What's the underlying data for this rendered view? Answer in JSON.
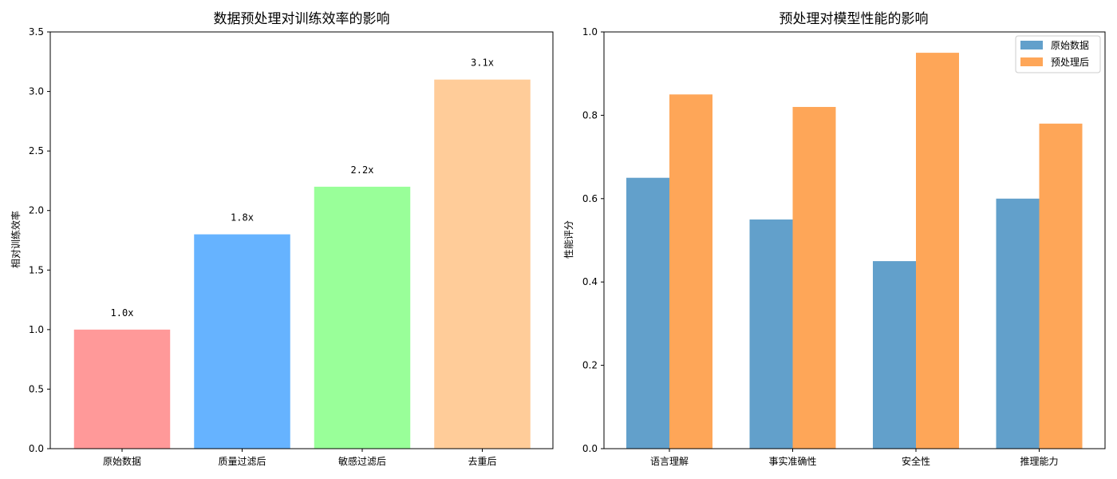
{
  "chart_data": [
    {
      "type": "bar",
      "title": "数据预处理对训练效率的影响",
      "xlabel": "",
      "ylabel": "相对训练效率",
      "categories": [
        "原始数据",
        "质量过滤后",
        "敏感过滤后",
        "去重后"
      ],
      "values": [
        1.0,
        1.8,
        2.2,
        3.1
      ],
      "data_labels": [
        "1.0x",
        "1.8x",
        "2.2x",
        "3.1x"
      ],
      "colors": [
        "#ff9999",
        "#66b3ff",
        "#99ff99",
        "#ffcc99"
      ],
      "ylim": [
        0,
        3.5
      ],
      "yticks": [
        0.0,
        0.5,
        1.0,
        1.5,
        2.0,
        2.5,
        3.0,
        3.5
      ],
      "ytick_labels": [
        "0.0",
        "0.5",
        "1.0",
        "1.5",
        "2.0",
        "2.5",
        "3.0",
        "3.5"
      ],
      "grid": false
    },
    {
      "type": "bar",
      "title": "预处理对模型性能的影响",
      "xlabel": "",
      "ylabel": "性能评分",
      "categories": [
        "语言理解",
        "事实准确性",
        "安全性",
        "推理能力"
      ],
      "series": [
        {
          "name": "原始数据",
          "values": [
            0.65,
            0.55,
            0.45,
            0.6
          ],
          "color": "#62a0cb"
        },
        {
          "name": "预处理后",
          "values": [
            0.85,
            0.82,
            0.95,
            0.78
          ],
          "color": "#fea658"
        }
      ],
      "ylim": [
        0,
        1.0
      ],
      "yticks": [
        0.0,
        0.2,
        0.4,
        0.6,
        0.8,
        1.0
      ],
      "ytick_labels": [
        "0.0",
        "0.2",
        "0.4",
        "0.6",
        "0.8",
        "1.0"
      ],
      "legend": "top-right",
      "grid": false
    }
  ]
}
